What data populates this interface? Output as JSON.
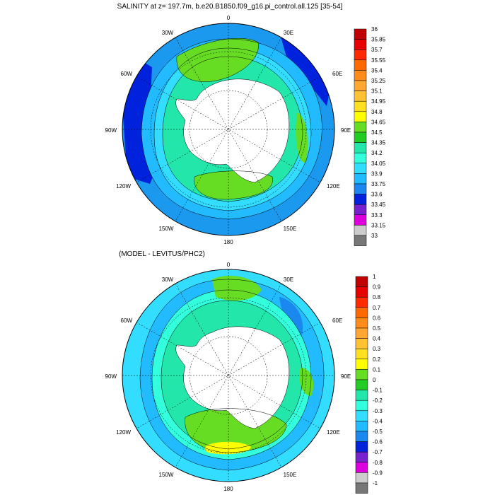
{
  "panels": [
    {
      "title": "SALINITY at z= 197.7m, b.e20.B1850.f09_g16.pi_control.all.125 [35-54]",
      "lon_labels": {
        "top": "0",
        "tr": "30E",
        "rt": "60E",
        "right": "90E",
        "rb": "120E",
        "br": "150E",
        "bottom": "180",
        "bl": "150W",
        "lb": "120W",
        "left": "90W",
        "lt": "60W",
        "tl": "30W"
      },
      "legend": {
        "labels": [
          "36",
          "35.85",
          "35.7",
          "35.55",
          "35.4",
          "35.25",
          "35.1",
          "34.95",
          "34.8",
          "34.65",
          "34.5",
          "34.35",
          "34.2",
          "34.05",
          "33.9",
          "33.75",
          "33.6",
          "33.45",
          "33.3",
          "33.15",
          "33"
        ],
        "colors": [
          "#c00000",
          "#e60000",
          "#ff2a00",
          "#ff6a00",
          "#ff8c1a",
          "#ffa733",
          "#ffc233",
          "#ffe020",
          "#ffff00",
          "#66dd22",
          "#22cc22",
          "#22e6aa",
          "#33ffdd",
          "#33ddff",
          "#22bbff",
          "#1a88ee",
          "#0022dd",
          "#7722cc",
          "#dd00dd",
          "#cccccc",
          "#777777"
        ]
      },
      "colors": {
        "ocean": "#1a99ee",
        "fresh": "#0022dd",
        "mid": "#22bbff",
        "cyan": "#33ddff",
        "teal": "#22e6aa",
        "green": "#66dd22",
        "land": "#ffffff"
      }
    },
    {
      "title": "(MODEL - LEVITUS/PHC2)",
      "lon_labels": {
        "top": "0",
        "tr": "30E",
        "rt": "60E",
        "right": "90E",
        "rb": "120E",
        "br": "150E",
        "bottom": "180",
        "bl": "150W",
        "lb": "120W",
        "left": "90W",
        "lt": "60W",
        "tl": "30W"
      },
      "legend": {
        "labels": [
          "1",
          "0.9",
          "0.8",
          "0.7",
          "0.6",
          "0.5",
          "0.4",
          "0.3",
          "0.2",
          "0.1",
          "0",
          "-0.1",
          "-0.2",
          "-0.3",
          "-0.4",
          "-0.5",
          "-0.6",
          "-0.7",
          "-0.8",
          "-0.9",
          "-1"
        ],
        "colors": [
          "#c00000",
          "#e60000",
          "#ff2a00",
          "#ff6a00",
          "#ff8c1a",
          "#ffa733",
          "#ffc233",
          "#ffe020",
          "#ffff00",
          "#66dd22",
          "#22cc22",
          "#22e6aa",
          "#33ffdd",
          "#33ddff",
          "#22bbff",
          "#1a88ee",
          "#0022dd",
          "#7722cc",
          "#dd00dd",
          "#cccccc",
          "#777777"
        ]
      },
      "colors": {
        "ocean": "#33ddff",
        "fresh": "#1a88ee",
        "mid": "#22bbff",
        "cyan": "#33ffdd",
        "teal": "#22e6aa",
        "green": "#66dd22",
        "land": "#ffffff"
      }
    }
  ]
}
